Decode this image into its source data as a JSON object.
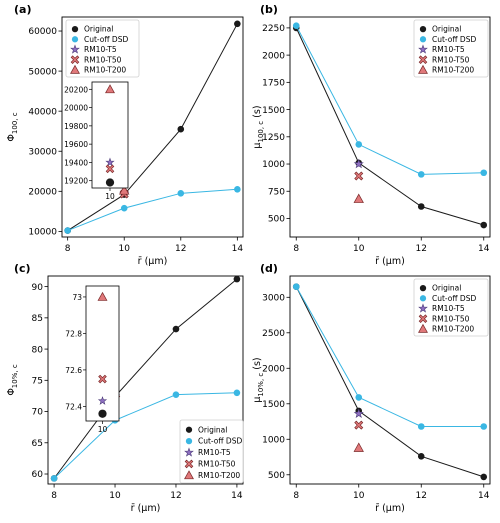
{
  "legend_labels": {
    "original": "Original",
    "cutoff": "Cut-off DSD",
    "t5": "RM10-T5",
    "t50": "RM10-T50",
    "t200": "RM10-T200"
  },
  "colors": {
    "original": "#1a1a1a",
    "cutoff": "#3ab7e3",
    "t5_fill": "#8e6fc1",
    "t50_fill": "#e0787a",
    "t200_fill": "#e0787a",
    "marker_edge": "#7a2a2a"
  },
  "chart_data": [
    {
      "panel_label": "(a)",
      "type": "line",
      "xlabel": "r̄ (μm)",
      "ylabel": "Φ100, c",
      "ylabel_main": "Φ",
      "ylabel_sub": "100, c",
      "xlim": [
        7.8,
        14.2
      ],
      "ylim": [
        8600,
        63500
      ],
      "xticks": [
        8,
        10,
        12,
        14
      ],
      "yticks": [
        10000,
        20000,
        30000,
        40000,
        50000,
        60000
      ],
      "ytick_labels": [
        "10000",
        "20000",
        "30000",
        "40000",
        "50000",
        "60000"
      ],
      "legend_position": "top-left",
      "series": [
        {
          "name": "Original",
          "x": [
            8,
            10,
            12,
            14
          ],
          "y": [
            10200,
            19180,
            35500,
            61800
          ]
        },
        {
          "name": "Cut-off DSD",
          "x": [
            8,
            10,
            12,
            14
          ],
          "y": [
            10200,
            15800,
            19500,
            20500
          ]
        }
      ],
      "points": [
        {
          "name": "RM10-T5",
          "x": 10,
          "y": 19400
        },
        {
          "name": "RM10-T50",
          "x": 10,
          "y": 19330
        },
        {
          "name": "RM10-T200",
          "x": 10,
          "y": 20200
        }
      ],
      "inset": {
        "xticks": [
          10
        ],
        "yticks": [
          19200,
          19400,
          19600,
          19800,
          20000,
          20200
        ],
        "ylim": [
          19120,
          20280
        ],
        "original": 19180,
        "t5": 19400,
        "t50": 19330,
        "t200": 20200
      }
    },
    {
      "panel_label": "(b)",
      "type": "line",
      "xlabel": "r̄ (μm)",
      "ylabel": "μ100, c (s)",
      "ylabel_main": "μ",
      "ylabel_sub": "100, c",
      "ylabel_unit": " (s)",
      "xlim": [
        7.8,
        14.2
      ],
      "ylim": [
        330,
        2350
      ],
      "xticks": [
        8,
        10,
        12,
        14
      ],
      "yticks": [
        500,
        750,
        1000,
        1250,
        1500,
        1750,
        2000,
        2250
      ],
      "ytick_labels": [
        "500",
        "750",
        "1000",
        "1250",
        "1500",
        "1750",
        "2000",
        "2250"
      ],
      "legend_position": "top-right",
      "series": [
        {
          "name": "Original",
          "x": [
            8,
            10,
            12,
            14
          ],
          "y": [
            2250,
            1010,
            610,
            440
          ]
        },
        {
          "name": "Cut-off DSD",
          "x": [
            8,
            10,
            12,
            14
          ],
          "y": [
            2270,
            1180,
            905,
            920
          ]
        }
      ],
      "points": [
        {
          "name": "RM10-T5",
          "x": 10,
          "y": 1000
        },
        {
          "name": "RM10-T50",
          "x": 10,
          "y": 890
        },
        {
          "name": "RM10-T200",
          "x": 10,
          "y": 680
        }
      ]
    },
    {
      "panel_label": "(c)",
      "type": "line",
      "xlabel": "r̄ (μm)",
      "ylabel": "Φ10%, c",
      "ylabel_main": "Φ",
      "ylabel_sub": "10%, c",
      "xlim": [
        7.8,
        14.2
      ],
      "ylim": [
        58.4,
        91.7
      ],
      "xticks": [
        8,
        10,
        12,
        14
      ],
      "yticks": [
        60,
        65,
        70,
        75,
        80,
        85,
        90
      ],
      "ytick_labels": [
        "60",
        "65",
        "70",
        "75",
        "80",
        "85",
        "90"
      ],
      "legend_position": "bottom-right",
      "series": [
        {
          "name": "Original",
          "x": [
            8,
            10,
            12,
            14
          ],
          "y": [
            59.3,
            72.4,
            83.2,
            91.2
          ]
        },
        {
          "name": "Cut-off DSD",
          "x": [
            8,
            10,
            12,
            14
          ],
          "y": [
            59.3,
            68.6,
            72.7,
            73.0
          ]
        }
      ],
      "points": [
        {
          "name": "RM10-T5",
          "x": 10,
          "y": 72.5
        },
        {
          "name": "RM10-T50",
          "x": 10,
          "y": 72.6
        },
        {
          "name": "RM10-T200",
          "x": 10,
          "y": 73.0
        }
      ],
      "inset": {
        "xticks": [
          10
        ],
        "yticks": [
          72.4,
          72.6,
          72.8,
          73.0
        ],
        "ylim": [
          72.32,
          73.06
        ],
        "original": 72.36,
        "t5": 72.43,
        "t50": 72.55,
        "t200": 73.0
      }
    },
    {
      "panel_label": "(d)",
      "type": "line",
      "xlabel": "r̄ (μm)",
      "ylabel": "μ10%, c (s)",
      "ylabel_main": "μ",
      "ylabel_sub": "10%, c",
      "ylabel_unit": " (s)",
      "xlim": [
        7.8,
        14.2
      ],
      "ylim": [
        370,
        3300
      ],
      "xticks": [
        8,
        10,
        12,
        14
      ],
      "yticks": [
        500,
        1000,
        1500,
        2000,
        2500,
        3000
      ],
      "ytick_labels": [
        "500",
        "1000",
        "1500",
        "2000",
        "2500",
        "3000"
      ],
      "legend_position": "top-right",
      "series": [
        {
          "name": "Original",
          "x": [
            8,
            10,
            12,
            14
          ],
          "y": [
            3150,
            1400,
            760,
            470
          ]
        },
        {
          "name": "Cut-off DSD",
          "x": [
            8,
            10,
            12,
            14
          ],
          "y": [
            3150,
            1590,
            1180,
            1180
          ]
        }
      ],
      "points": [
        {
          "name": "RM10-T5",
          "x": 10,
          "y": 1360
        },
        {
          "name": "RM10-T50",
          "x": 10,
          "y": 1200
        },
        {
          "name": "RM10-T200",
          "x": 10,
          "y": 880
        }
      ]
    }
  ]
}
